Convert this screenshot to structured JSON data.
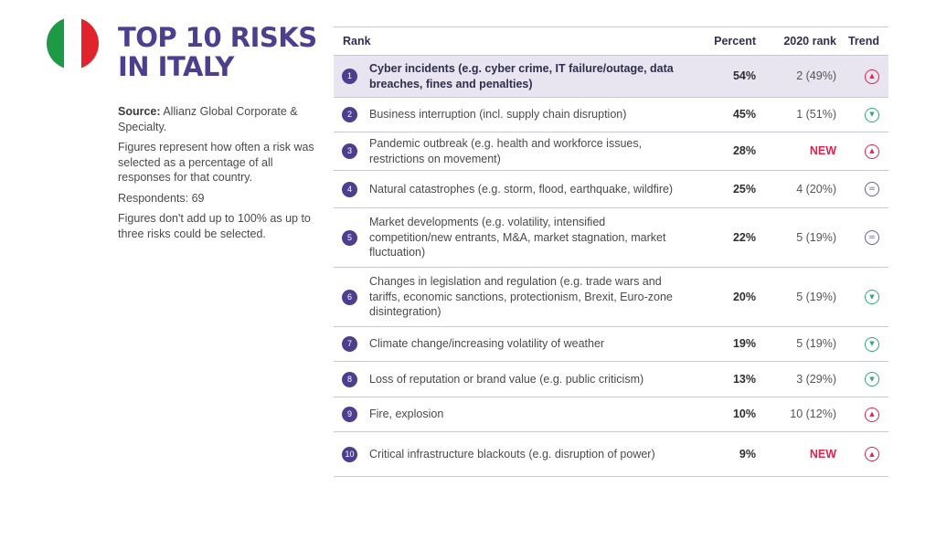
{
  "flag": {
    "colors": [
      "#1e9a46",
      "#ffffff",
      "#e1242b"
    ]
  },
  "title": "TOP 10 RISKS IN ITALY",
  "side": {
    "source_label": "Source:",
    "source_text": " Allianz Global Corporate & Specialty.",
    "note1": "Figures represent how often a risk was selected as a percentage of all responses for that country.",
    "respondents": "Respondents: 69",
    "note2": "Figures don't add up to 100% as up to three risks could be selected."
  },
  "table": {
    "headers": {
      "rank": "Rank",
      "percent": "Percent",
      "prev_rank": "2020 rank",
      "trend": "Trend"
    },
    "rows": [
      {
        "rank": "1",
        "risk": "Cyber incidents (e.g. cyber crime, IT failure/outage, data breaches, fines and penalties)",
        "percent": "54%",
        "prev": "2 (49%)",
        "trend": "up",
        "trend_icon": "triangle-up-icon"
      },
      {
        "rank": "2",
        "risk": "Business interruption (incl. supply chain disruption)",
        "percent": "45%",
        "prev": "1 (51%)",
        "trend": "down",
        "trend_icon": "triangle-down-icon"
      },
      {
        "rank": "3",
        "risk": "Pandemic outbreak (e.g. health and workforce issues, restrictions on movement)",
        "percent": "28%",
        "prev": "NEW",
        "trend": "up",
        "trend_icon": "triangle-up-icon"
      },
      {
        "rank": "4",
        "risk": "Natural catastrophes (e.g. storm, flood, earthquake, wildfire)",
        "percent": "25%",
        "prev": "4 (20%)",
        "trend": "eq",
        "trend_icon": "equals-icon"
      },
      {
        "rank": "5",
        "risk": "Market developments (e.g. volatility, intensified competition/new entrants, M&A, market stagnation, market fluctuation)",
        "percent": "22%",
        "prev": "5 (19%)",
        "trend": "eq",
        "trend_icon": "equals-icon"
      },
      {
        "rank": "6",
        "risk": "Changes in legislation and regulation (e.g. trade wars and tariffs, economic sanctions, protectionism, Brexit, Euro-zone disintegration)",
        "percent": "20%",
        "prev": "5 (19%)",
        "trend": "down",
        "trend_icon": "triangle-down-icon"
      },
      {
        "rank": "7",
        "risk": "Climate change/increasing volatility of weather",
        "percent": "19%",
        "prev": "5 (19%)",
        "trend": "down",
        "trend_icon": "triangle-down-icon"
      },
      {
        "rank": "8",
        "risk": "Loss of reputation or brand value (e.g. public criticism)",
        "percent": "13%",
        "prev": "3 (29%)",
        "trend": "down",
        "trend_icon": "triangle-down-icon"
      },
      {
        "rank": "9",
        "risk": "Fire, explosion",
        "percent": "10%",
        "prev": "10 (12%)",
        "trend": "up",
        "trend_icon": "triangle-up-icon"
      },
      {
        "rank": "10",
        "risk": "Critical infrastructure blackouts (e.g. disruption of power)",
        "percent": "9%",
        "prev": "NEW",
        "trend": "up",
        "trend_icon": "triangle-up-icon"
      }
    ]
  },
  "colors": {
    "accent": "#4e3e8e",
    "highlight": "#e8e4f0",
    "up": "#e0224e",
    "down": "#2fa87e",
    "neutral": "#6a5ca8"
  }
}
